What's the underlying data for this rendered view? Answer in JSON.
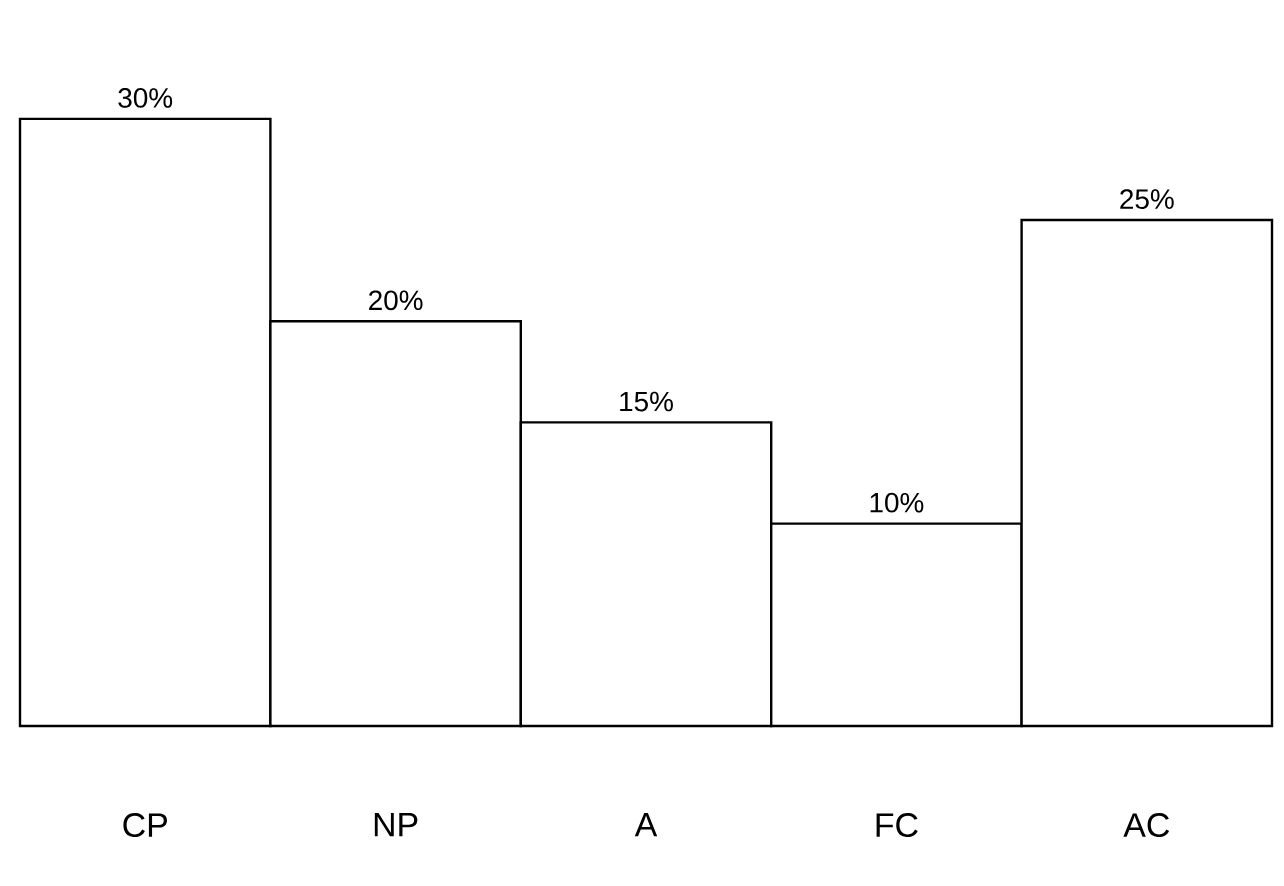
{
  "chart_data": {
    "type": "bar",
    "categories": [
      "CP",
      "NP",
      "A",
      "FC",
      "AC"
    ],
    "values": [
      30,
      20,
      15,
      10,
      25
    ],
    "value_labels": [
      "30%",
      "20%",
      "15%",
      "10%",
      "25%"
    ],
    "color": "#ffffff"
  }
}
